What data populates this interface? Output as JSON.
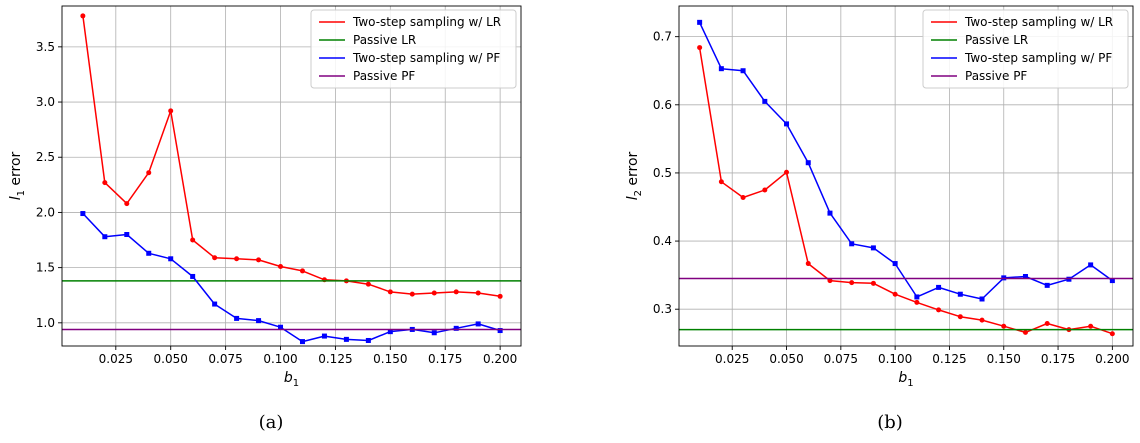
{
  "chart_data": [
    {
      "type": "line",
      "caption": "(a)",
      "xlabel": "b",
      "xlabel_sub": "1",
      "ylabel": "l",
      "ylabel_sub": "1",
      "ylabel_rest": " error",
      "xlim": [
        0.0005,
        0.2095
      ],
      "ylim": [
        0.79,
        3.87
      ],
      "x_ticks": [
        0.025,
        0.05,
        0.075,
        0.1,
        0.125,
        0.15,
        0.175,
        0.2
      ],
      "x_tick_labels": [
        "0.025",
        "0.050",
        "0.075",
        "0.100",
        "0.125",
        "0.150",
        "0.175",
        "0.200"
      ],
      "y_ticks": [
        1.0,
        1.5,
        2.0,
        2.5,
        3.0,
        3.5
      ],
      "y_tick_labels": [
        "1.0",
        "1.5",
        "2.0",
        "2.5",
        "3.0",
        "3.5"
      ],
      "grid": true,
      "legend_position": "top-right",
      "x": [
        0.01,
        0.02,
        0.03,
        0.04,
        0.05,
        0.06,
        0.07,
        0.08,
        0.09,
        0.1,
        0.11,
        0.12,
        0.13,
        0.14,
        0.15,
        0.16,
        0.17,
        0.18,
        0.19,
        0.2
      ],
      "series": [
        {
          "name": "Two-step sampling w/ LR",
          "color": "#ff0000",
          "marker": "circle",
          "values": [
            3.78,
            2.27,
            2.08,
            2.36,
            2.92,
            1.75,
            1.59,
            1.58,
            1.57,
            1.51,
            1.47,
            1.39,
            1.38,
            1.35,
            1.28,
            1.26,
            1.27,
            1.28,
            1.27,
            1.24
          ]
        },
        {
          "name": "Passive LR",
          "color": "#008000",
          "constant": 1.38
        },
        {
          "name": "Two-step sampling w/ PF",
          "color": "#0000ff",
          "marker": "square",
          "values": [
            1.99,
            1.78,
            1.8,
            1.63,
            1.58,
            1.42,
            1.17,
            1.04,
            1.02,
            0.96,
            0.83,
            0.88,
            0.85,
            0.84,
            0.92,
            0.94,
            0.91,
            0.95,
            0.99,
            0.93
          ]
        },
        {
          "name": "Passive PF",
          "color": "#800080",
          "constant": 0.94
        }
      ]
    },
    {
      "type": "line",
      "caption": "(b)",
      "xlabel": "b",
      "xlabel_sub": "1",
      "ylabel": "l",
      "ylabel_sub": "2",
      "ylabel_rest": " error",
      "xlim": [
        0.0005,
        0.2095
      ],
      "ylim": [
        0.246,
        0.745
      ],
      "x_ticks": [
        0.025,
        0.05,
        0.075,
        0.1,
        0.125,
        0.15,
        0.175,
        0.2
      ],
      "x_tick_labels": [
        "0.025",
        "0.050",
        "0.075",
        "0.100",
        "0.125",
        "0.150",
        "0.175",
        "0.200"
      ],
      "y_ticks": [
        0.3,
        0.4,
        0.5,
        0.6,
        0.7
      ],
      "y_tick_labels": [
        "0.3",
        "0.4",
        "0.5",
        "0.6",
        "0.7"
      ],
      "grid": true,
      "legend_position": "top-right",
      "x": [
        0.01,
        0.02,
        0.03,
        0.04,
        0.05,
        0.06,
        0.07,
        0.08,
        0.09,
        0.1,
        0.11,
        0.12,
        0.13,
        0.14,
        0.15,
        0.16,
        0.17,
        0.18,
        0.19,
        0.2
      ],
      "series": [
        {
          "name": "Two-step sampling w/ LR",
          "color": "#ff0000",
          "marker": "circle",
          "values": [
            0.684,
            0.487,
            0.464,
            0.475,
            0.501,
            0.367,
            0.342,
            0.339,
            0.338,
            0.322,
            0.31,
            0.299,
            0.289,
            0.284,
            0.275,
            0.266,
            0.279,
            0.27,
            0.275,
            0.264
          ]
        },
        {
          "name": "Passive LR",
          "color": "#008000",
          "constant": 0.27
        },
        {
          "name": "Two-step sampling w/ PF",
          "color": "#0000ff",
          "marker": "square",
          "values": [
            0.721,
            0.653,
            0.65,
            0.605,
            0.572,
            0.515,
            0.441,
            0.396,
            0.39,
            0.367,
            0.318,
            0.332,
            0.322,
            0.315,
            0.346,
            0.348,
            0.335,
            0.344,
            0.365,
            0.342
          ]
        },
        {
          "name": "Passive PF",
          "color": "#800080",
          "constant": 0.345
        }
      ]
    }
  ]
}
